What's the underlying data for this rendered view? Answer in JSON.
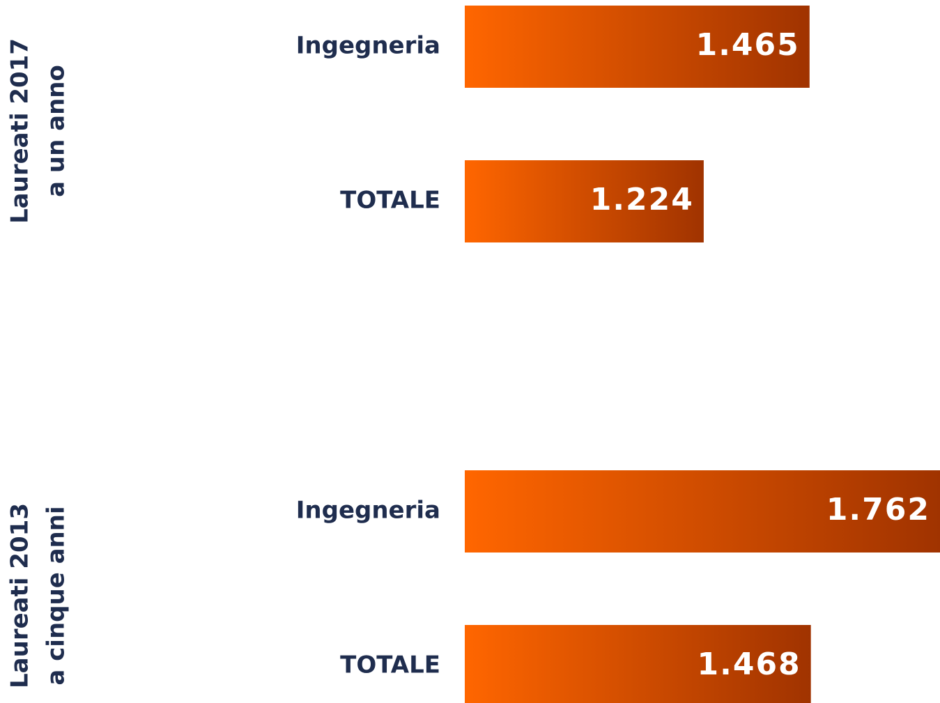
{
  "chart_data": {
    "type": "bar",
    "orientation": "horizontal",
    "color": "#ff6600",
    "color_end": "#a03300",
    "xlim": [
      680,
      1762
    ],
    "groups": [
      {
        "label": [
          "Laureati 2017",
          "a un anno"
        ],
        "categories": [
          "Ingegneria",
          "TOTALE"
        ],
        "values": [
          1465,
          1224
        ],
        "value_labels": [
          "1.465",
          "1.224"
        ]
      },
      {
        "label": [
          "Laureati 2013",
          "a cinque anni"
        ],
        "categories": [
          "Ingegneria",
          "TOTALE"
        ],
        "values": [
          1762,
          1468
        ],
        "value_labels": [
          "1.762",
          "1.468"
        ]
      }
    ]
  }
}
